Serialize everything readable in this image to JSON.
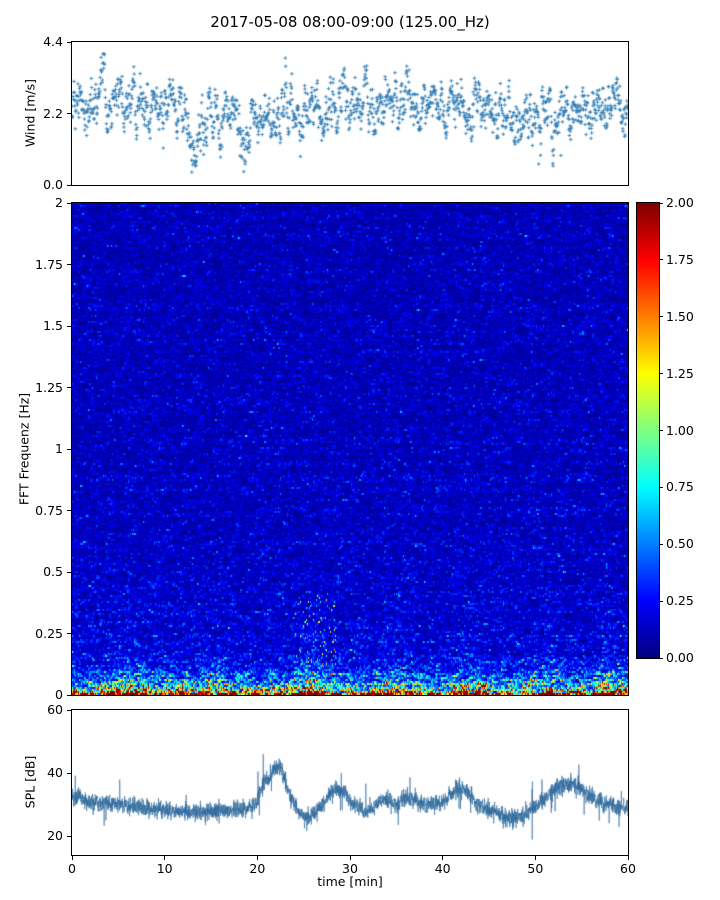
{
  "title": "2017-05-08 08:00-09:00 (125.00_Hz)",
  "chart_data": [
    {
      "id": "wind",
      "type": "scatter",
      "ylabel": "Wind [m/s]",
      "ylim": [
        0.0,
        4.4
      ],
      "ytick_values": [
        0.0,
        2.2,
        4.4
      ],
      "yticks": [
        "0.0",
        "2.2",
        "4.4"
      ],
      "xlim": [
        0,
        60
      ],
      "marker": "plus",
      "marker_color": "#2e7bb4",
      "n_points": 1700,
      "mean_mps": 2.35,
      "std_mps": 0.55,
      "value_range_mps": [
        0.3,
        4.35
      ]
    },
    {
      "id": "spectrogram",
      "type": "heatmap",
      "ylabel": "FFT Frequenz [Hz]",
      "ylim": [
        0,
        2
      ],
      "ytick_values": [
        0,
        0.25,
        0.5,
        0.75,
        1,
        1.25,
        1.5,
        1.75,
        2
      ],
      "yticks": [
        "0",
        "0.25",
        "0.5",
        "0.75",
        "1",
        "1.25",
        "1.5",
        "1.75",
        "2"
      ],
      "xlim": [
        0,
        60
      ],
      "colormap": "jet",
      "clim": [
        0.0,
        2.0
      ],
      "background_level": 0.15,
      "low_freq_band": {
        "cutoff_hz": 0.3,
        "peak_level": 2.0
      },
      "event_times_min": [
        6,
        15,
        26,
        35,
        43,
        51,
        58
      ],
      "strongest_event": {
        "t_min": 26,
        "reaches_hz": 0.38
      },
      "colorbar": {
        "tick_values": [
          2.0,
          1.75,
          1.5,
          1.25,
          1.0,
          0.75,
          0.5,
          0.25,
          0.0
        ],
        "ticks": [
          "2.00",
          "1.75",
          "1.50",
          "1.25",
          "1.00",
          "0.75",
          "0.50",
          "0.25",
          "0.00"
        ]
      }
    },
    {
      "id": "spl",
      "type": "line",
      "ylabel": "SPL [dB]",
      "ylim": [
        14,
        60
      ],
      "ytick_values": [
        20,
        40,
        60
      ],
      "yticks": [
        "20",
        "40",
        "60"
      ],
      "xlabel": "time [min]",
      "xlim": [
        0,
        60
      ],
      "xtick_values": [
        0,
        10,
        20,
        30,
        40,
        50,
        60
      ],
      "xticks": [
        "0",
        "10",
        "20",
        "30",
        "40",
        "50",
        "60"
      ],
      "line_color": "#2d699b",
      "baseline_db": 29,
      "peaks": [
        {
          "t_min": 22.2,
          "level_db": 45
        },
        {
          "t_min": 28.7,
          "level_db": 38
        },
        {
          "t_min": 42.0,
          "level_db": 36
        },
        {
          "t_min": 53.0,
          "level_db": 37
        }
      ]
    }
  ]
}
